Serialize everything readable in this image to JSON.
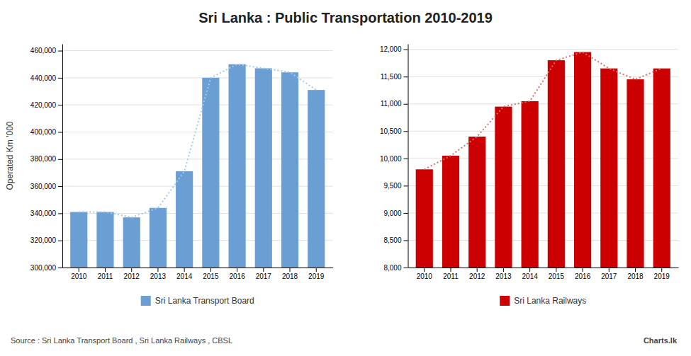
{
  "title": "Sri Lanka : Public Transportation 2010-2019",
  "annotations": [
    "Source : Sri Lanka Transport Board , Sri Lanka Railways , CBSL",
    "Charts.lk"
  ],
  "chart_data": [
    {
      "type": "bar",
      "categories": [
        "2010",
        "2011",
        "2012",
        "2013",
        "2014",
        "2015",
        "2016",
        "2017",
        "2018",
        "2019"
      ],
      "series": [
        {
          "name": "Sri Lanka Transport Board",
          "color": "#6b9fd4",
          "values": [
            341000,
            341000,
            337000,
            344000,
            371000,
            440000,
            450000,
            447000,
            444000,
            431000
          ]
        },
        {
          "type": "line",
          "line_style": "dotted",
          "color": "#a8c8e8",
          "values": [
            341000,
            341000,
            337000,
            344000,
            371000,
            440000,
            450000,
            447000,
            444000,
            431000
          ]
        }
      ],
      "y_label": "Operated Km '000",
      "ylim": [
        300000,
        465000
      ],
      "yticks": [
        {
          "value": 300000,
          "label": "300,000"
        },
        {
          "value": 320000,
          "label": "320,000"
        },
        {
          "value": 340000,
          "label": "340,000"
        },
        {
          "value": 360000,
          "label": "360,000"
        },
        {
          "value": 380000,
          "label": "380,000"
        },
        {
          "value": 400000,
          "label": "400,000"
        },
        {
          "value": 420000,
          "label": "420,000"
        },
        {
          "value": 440000,
          "label": "440,000"
        },
        {
          "value": 460000,
          "label": "460,000"
        }
      ],
      "grid": true,
      "legend": "bottom"
    },
    {
      "type": "bar",
      "categories": [
        "2010",
        "2011",
        "2012",
        "2013",
        "2014",
        "2015",
        "2016",
        "2017",
        "2018",
        "2019"
      ],
      "series": [
        {
          "name": "Sri Lanka Railways",
          "color": "#cc0000",
          "values": [
            9800,
            10050,
            10400,
            10950,
            11050,
            11800,
            11950,
            11650,
            11450,
            11650
          ]
        },
        {
          "type": "line",
          "line_style": "dotted",
          "color": "#d47070",
          "values": [
            9800,
            10050,
            10400,
            10950,
            11050,
            11800,
            11950,
            11650,
            11450,
            11650
          ]
        }
      ],
      "ylim": [
        8000,
        12100
      ],
      "yticks": [
        {
          "value": 8000,
          "label": "8,000"
        },
        {
          "value": 8500,
          "label": "8,500"
        },
        {
          "value": 9000,
          "label": "9,000"
        },
        {
          "value": 9500,
          "label": "9,500"
        },
        {
          "value": 10000,
          "label": "10,000"
        },
        {
          "value": 10500,
          "label": "10,500"
        },
        {
          "value": 11000,
          "label": "11,000"
        },
        {
          "value": 11500,
          "label": "11,500"
        },
        {
          "value": 12000,
          "label": "12,000"
        }
      ],
      "grid": true,
      "legend": "bottom"
    }
  ]
}
